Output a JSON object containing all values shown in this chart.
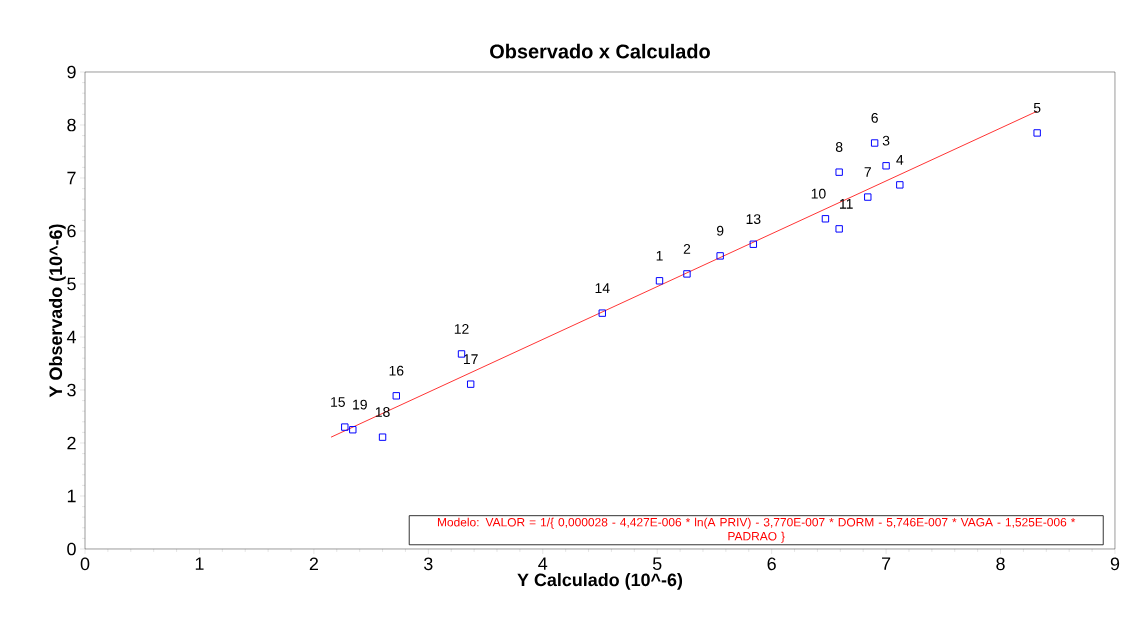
{
  "chart_data": {
    "type": "scatter",
    "title": "Observado x Calculado",
    "xlabel": "Y Calculado (10^-6)",
    "ylabel": "Y Observado  (10^-6)",
    "xlim": [
      0,
      9
    ],
    "ylim": [
      0,
      9
    ],
    "xticks": [
      0,
      1,
      2,
      3,
      4,
      5,
      6,
      7,
      8,
      9
    ],
    "yticks": [
      0,
      1,
      2,
      3,
      4,
      5,
      6,
      7,
      8,
      9
    ],
    "grid": false,
    "marker": "square",
    "series": [
      {
        "color": "#0000ff",
        "x": [
          5.02,
          5.26,
          7.0,
          7.12,
          8.32,
          6.9,
          6.84,
          6.59,
          5.55,
          6.47,
          6.59,
          3.29,
          5.84,
          4.52,
          2.27,
          2.72,
          3.37,
          2.6,
          2.34
        ],
        "values": [
          5.06,
          5.19,
          7.23,
          6.87,
          7.85,
          7.66,
          6.64,
          7.11,
          5.53,
          6.23,
          6.04,
          3.68,
          5.75,
          4.45,
          2.3,
          2.89,
          3.11,
          2.11,
          2.25
        ]
      },
      {
        "type": "line",
        "color": "#ff0000",
        "marker": "none",
        "x": [
          2.15,
          8.32
        ],
        "values": [
          2.11,
          8.26
        ]
      }
    ],
    "annotations": [
      {
        "text": "1",
        "x": 5.02,
        "y": 5.06
      },
      {
        "text": "2",
        "x": 5.26,
        "y": 5.19
      },
      {
        "text": "3",
        "x": 7.0,
        "y": 7.23
      },
      {
        "text": "4",
        "x": 7.12,
        "y": 6.87
      },
      {
        "text": "5",
        "x": 8.32,
        "y": 7.85
      },
      {
        "text": "6",
        "x": 6.9,
        "y": 7.66
      },
      {
        "text": "7",
        "x": 6.84,
        "y": 6.64
      },
      {
        "text": "8",
        "x": 6.59,
        "y": 7.11
      },
      {
        "text": "9",
        "x": 5.55,
        "y": 5.53
      },
      {
        "text": "10",
        "x": 6.47,
        "y": 6.23
      },
      {
        "text": "11",
        "x": 6.59,
        "y": 6.04
      },
      {
        "text": "12",
        "x": 3.29,
        "y": 3.68
      },
      {
        "text": "13",
        "x": 5.84,
        "y": 5.75
      },
      {
        "text": "14",
        "x": 4.52,
        "y": 4.45
      },
      {
        "text": "15",
        "x": 2.27,
        "y": 2.3
      },
      {
        "text": "16",
        "x": 2.72,
        "y": 2.89
      },
      {
        "text": "17",
        "x": 3.37,
        "y": 3.11
      },
      {
        "text": "18",
        "x": 2.6,
        "y": 2.11
      },
      {
        "text": "19",
        "x": 2.34,
        "y": 2.25
      },
      "Modelo: VALOR  =  1/{ 0,000028  -  4,427E-006 * ln(A PRIV)  -  3,770E-007 * DORM  -  5,746E-007 * VAGA  -  1,525E-006 * PADRAO }"
    ]
  }
}
